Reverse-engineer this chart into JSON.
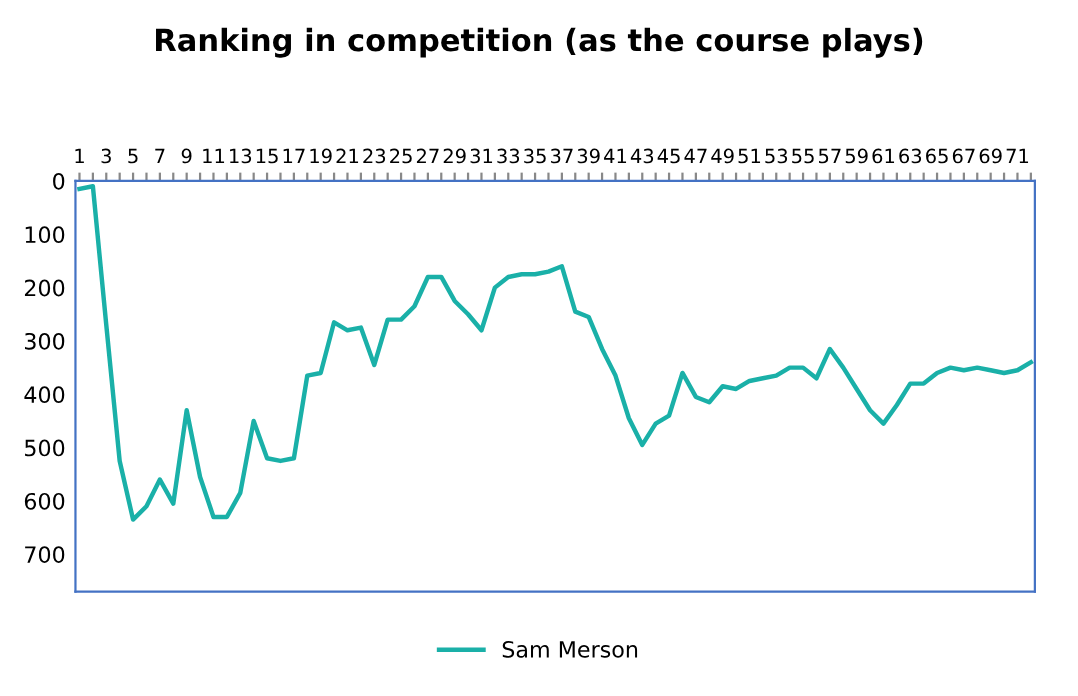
{
  "chart_data": {
    "type": "line",
    "title": "Ranking in competition (as the course plays)",
    "categories": [
      "1",
      null,
      "3",
      null,
      "5",
      null,
      "7",
      null,
      "9",
      null,
      "11",
      null,
      "13",
      null,
      "15",
      null,
      "17",
      null,
      "19",
      null,
      "21",
      null,
      "23",
      null,
      "25",
      null,
      "27",
      null,
      "29",
      null,
      "31",
      null,
      "33",
      null,
      "35",
      null,
      "37",
      null,
      "39",
      null,
      "41",
      null,
      "43",
      null,
      "45",
      null,
      "47",
      null,
      "49",
      null,
      "51",
      null,
      "53",
      null,
      "55",
      null,
      "57",
      null,
      "59",
      null,
      "61",
      null,
      "63",
      null,
      "65",
      null,
      "67",
      null,
      "69",
      null,
      "71",
      null
    ],
    "series": [
      {
        "name": "Sam Merson",
        "color": "#1ab0a8",
        "values": [
          15,
          10,
          270,
          525,
          635,
          610,
          560,
          605,
          430,
          555,
          630,
          630,
          585,
          450,
          520,
          525,
          520,
          365,
          360,
          265,
          280,
          275,
          345,
          260,
          260,
          235,
          180,
          180,
          225,
          250,
          280,
          200,
          180,
          175,
          175,
          170,
          160,
          245,
          255,
          315,
          365,
          445,
          495,
          455,
          440,
          360,
          405,
          415,
          385,
          390,
          375,
          370,
          365,
          350,
          350,
          370,
          315,
          350,
          390,
          430,
          455,
          420,
          380,
          380,
          360,
          350,
          355,
          350,
          355,
          360,
          355,
          340
        ]
      }
    ],
    "ylim": [
      770,
      0
    ],
    "yticks": [
      0,
      100,
      200,
      300,
      400,
      500,
      600,
      700
    ],
    "grid": false,
    "legend": "bottom",
    "marker": "none",
    "line_style": "solid"
  }
}
